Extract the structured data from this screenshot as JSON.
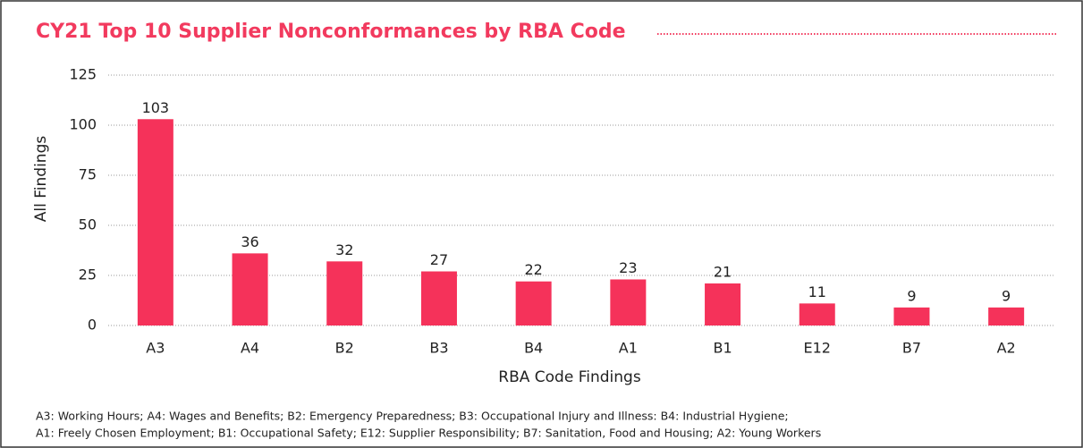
{
  "chart_data": {
    "type": "bar",
    "title": "CY21 Top 10 Supplier Nonconformances by RBA Code",
    "xlabel": "RBA Code Findings",
    "ylabel": "All Findings",
    "categories": [
      "A3",
      "A4",
      "B2",
      "B3",
      "B4",
      "A1",
      "B1",
      "E12",
      "B7",
      "A2"
    ],
    "values": [
      103,
      36,
      32,
      27,
      22,
      23,
      21,
      11,
      9,
      9
    ],
    "color": "#f5325a",
    "ylim": [
      0,
      125
    ],
    "yticks": [
      0,
      25,
      50,
      75,
      100,
      125
    ],
    "grid": true,
    "footnote": [
      "A3: Working Hours; A4: Wages and Benefits; B2: Emergency Preparedness; B3: Occupational Injury and Illness: B4: Industrial Hygiene;",
      "A1: Freely Chosen Employment; B1: Occupational Safety; E12: Supplier Responsibility; B7: Sanitation, Food and Housing; A2: Young Workers"
    ]
  }
}
